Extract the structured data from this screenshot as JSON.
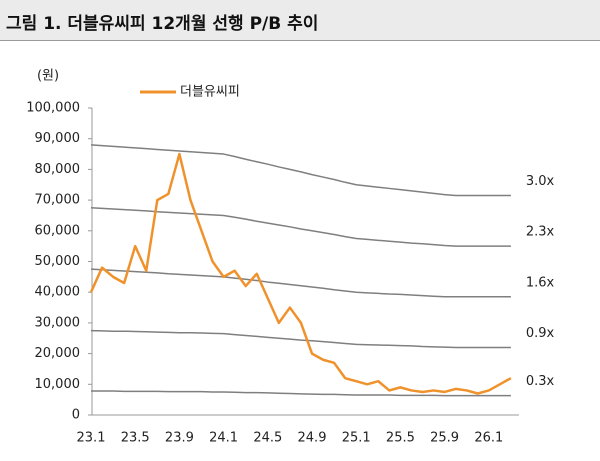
{
  "chart_data": {
    "type": "line",
    "title": "그림 1. 더블유씨피 12개월 선행 P/B 추이",
    "unit": "(원)",
    "categories": [
      "23.1",
      null,
      null,
      null,
      "23.5",
      null,
      null,
      null,
      "23.9",
      null,
      null,
      null,
      "24.1",
      null,
      null,
      null,
      "24.5",
      null,
      null,
      null,
      "24.9",
      null,
      null,
      null,
      "25.1",
      null,
      null,
      null,
      "25.5",
      null,
      null,
      null,
      "25.9",
      null,
      null,
      null,
      "26.1",
      null,
      null
    ],
    "ylim": [
      0,
      100000
    ],
    "yticks": [
      0,
      {
        "value": 10000,
        "label": "10,000"
      },
      {
        "value": 20000,
        "label": "20,000"
      },
      {
        "value": 30000,
        "label": "30,000"
      },
      {
        "value": 40000,
        "label": "40,000"
      },
      {
        "value": 50000,
        "label": "50,000"
      },
      {
        "value": 60000,
        "label": "60,000"
      },
      {
        "value": 70000,
        "label": "70,000"
      },
      {
        "value": 80000,
        "label": "80,000"
      },
      {
        "value": 90000,
        "label": "90,000"
      },
      {
        "value": 100000,
        "label": "100,000"
      }
    ],
    "series": [
      {
        "name": "더블유씨피",
        "color": "#f0922c",
        "label_at": "legend",
        "values": [
          40000,
          48000,
          45000,
          43000,
          55000,
          47000,
          70000,
          72000,
          85000,
          70000,
          60000,
          50000,
          45000,
          47000,
          42000,
          46000,
          38000,
          30000,
          35000,
          30000,
          20000,
          18000,
          17000,
          12000,
          11000,
          10000,
          11000,
          8000,
          9000,
          8000,
          7500,
          8000,
          7500,
          8500,
          8000,
          7000,
          8000,
          10000,
          12000
        ]
      },
      {
        "name": "3.0x",
        "color": "#7f7f7f",
        "label_at": "end",
        "values": [
          88000,
          87750,
          87500,
          87250,
          87000,
          86750,
          86500,
          86250,
          86000,
          85750,
          85500,
          85250,
          85000,
          84200,
          83300,
          82500,
          81700,
          80800,
          80000,
          79200,
          78300,
          77500,
          76700,
          75800,
          75000,
          74600,
          74200,
          73800,
          73400,
          73000,
          72600,
          72200,
          71800,
          71500,
          71500,
          71500,
          71500,
          71500,
          71500
        ]
      },
      {
        "name": "2.3x",
        "color": "#7f7f7f",
        "label_at": "end",
        "values": [
          67500,
          67300,
          67100,
          66900,
          66700,
          66500,
          66200,
          66000,
          65800,
          65600,
          65400,
          65200,
          65000,
          64400,
          63800,
          63100,
          62500,
          61900,
          61300,
          60600,
          60000,
          59400,
          58800,
          58100,
          57500,
          57200,
          56900,
          56600,
          56300,
          56000,
          55800,
          55500,
          55200,
          55000,
          55000,
          55000,
          55000,
          55000,
          55000
        ]
      },
      {
        "name": "1.6x",
        "color": "#7f7f7f",
        "label_at": "end",
        "values": [
          47500,
          47300,
          47100,
          46900,
          46700,
          46500,
          46300,
          46000,
          45800,
          45600,
          45400,
          45200,
          45000,
          44600,
          44200,
          43800,
          43300,
          42900,
          42500,
          42100,
          41700,
          41300,
          40800,
          40400,
          40000,
          39800,
          39600,
          39400,
          39300,
          39100,
          38900,
          38700,
          38500,
          38500,
          38500,
          38500,
          38500,
          38500,
          38500
        ]
      },
      {
        "name": "0.9x",
        "color": "#7f7f7f",
        "label_at": "end",
        "values": [
          27500,
          27400,
          27300,
          27300,
          27200,
          27100,
          27000,
          26900,
          26800,
          26800,
          26700,
          26600,
          26500,
          26200,
          25900,
          25600,
          25300,
          25000,
          24700,
          24400,
          24200,
          23900,
          23600,
          23300,
          23000,
          22900,
          22800,
          22700,
          22600,
          22500,
          22300,
          22200,
          22100,
          22000,
          22000,
          22000,
          22000,
          22000,
          22000
        ]
      },
      {
        "name": "0.3x",
        "color": "#7f7f7f",
        "label_at": "end",
        "values": [
          7800,
          7800,
          7800,
          7700,
          7700,
          7700,
          7700,
          7600,
          7600,
          7600,
          7600,
          7500,
          7500,
          7400,
          7300,
          7300,
          7200,
          7100,
          7000,
          6900,
          6800,
          6700,
          6700,
          6600,
          6500,
          6500,
          6500,
          6500,
          6400,
          6400,
          6400,
          6400,
          6300,
          6300,
          6300,
          6300,
          6300,
          6300,
          6300
        ]
      }
    ]
  }
}
